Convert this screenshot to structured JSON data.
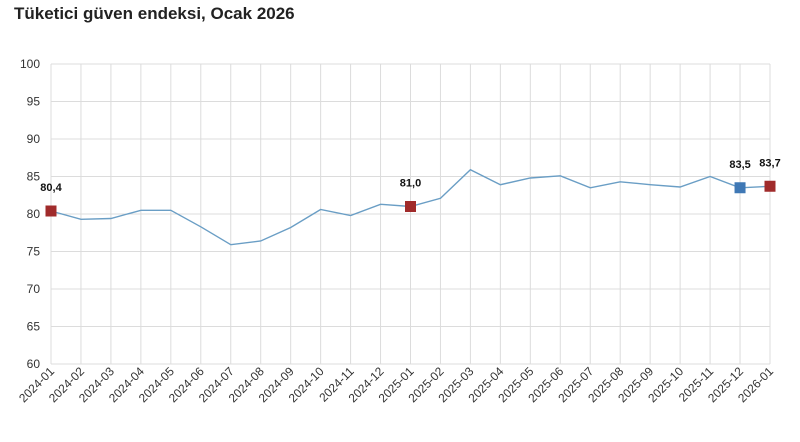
{
  "title": "Tüketici güven endeksi, Ocak 2026",
  "chart_data": {
    "type": "line",
    "title": "Tüketici güven endeksi, Ocak 2026",
    "xlabel": "",
    "ylabel": "",
    "ylim": [
      60,
      100
    ],
    "yticks": [
      "60",
      "65",
      "70",
      "75",
      "80",
      "85",
      "90",
      "95",
      "100"
    ],
    "grid": true,
    "categories": [
      "2024-01",
      "2024-02",
      "2024-03",
      "2024-04",
      "2024-05",
      "2024-06",
      "2024-07",
      "2024-08",
      "2024-09",
      "2024-10",
      "2024-11",
      "2024-12",
      "2025-01",
      "2025-02",
      "2025-03",
      "2025-04",
      "2025-05",
      "2025-06",
      "2025-07",
      "2025-08",
      "2025-09",
      "2025-10",
      "2025-11",
      "2025-12",
      "2026-01"
    ],
    "series": [
      {
        "line_color": "#6a9ec5",
        "values": [
          80.4,
          79.3,
          79.4,
          80.5,
          80.5,
          78.3,
          75.9,
          76.4,
          78.2,
          80.6,
          79.8,
          81.3,
          81.0,
          82.1,
          85.9,
          83.9,
          84.8,
          85.1,
          83.5,
          84.3,
          83.9,
          83.6,
          85.0,
          83.5,
          83.7
        ]
      }
    ],
    "highlights": [
      {
        "index": 0,
        "label": "80,4",
        "color": "#a02b2b"
      },
      {
        "index": 12,
        "label": "81,0",
        "color": "#a02b2b"
      },
      {
        "index": 23,
        "label": "83,5",
        "color": "#3f78b5"
      },
      {
        "index": 24,
        "label": "83,7",
        "color": "#a02b2b"
      }
    ]
  }
}
